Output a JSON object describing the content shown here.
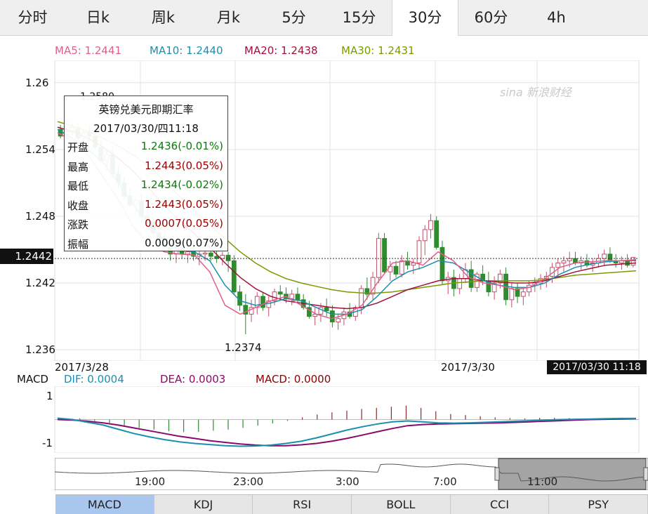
{
  "tabs": [
    "分时",
    "日k",
    "周k",
    "月k",
    "5分",
    "15分",
    "30分",
    "60分",
    "4h"
  ],
  "active_tab": "30分",
  "ma_legend": [
    {
      "label": "MA5: 1.2441",
      "color": "#e0608a"
    },
    {
      "label": "MA10: 1.2440",
      "color": "#1a8fb0"
    },
    {
      "label": "MA20: 1.2438",
      "color": "#a0123c"
    },
    {
      "label": "MA30: 1.2431",
      "color": "#7a9a00"
    }
  ],
  "watermark": "sina 新浪财经",
  "current_price": "1.2442",
  "min_label": "1.2374",
  "max_label": "1.2580",
  "x_labels": [
    "2017/3/28",
    "2017/3/30"
  ],
  "time_badge": "2017/03/30 11:18",
  "tooltip": {
    "title": "英镑兑美元即期汇率",
    "datetime": "2017/03/30/四11:18",
    "rows": [
      {
        "label": "开盘",
        "value": "1.2436(-0.01%)",
        "color": "#0a7a0a"
      },
      {
        "label": "最高",
        "value": "1.2443(0.05%)",
        "color": "#a00000"
      },
      {
        "label": "最低",
        "value": "1.2434(-0.02%)",
        "color": "#0a7a0a"
      },
      {
        "label": "收盘",
        "value": "1.2443(0.05%)",
        "color": "#a00000"
      },
      {
        "label": "涨跌",
        "value": "0.0007(0.05%)",
        "color": "#a00000"
      },
      {
        "label": "振幅",
        "value": "0.0009(0.07%)",
        "color": "#111111"
      }
    ]
  },
  "macd_legend": [
    {
      "label": "MACD",
      "color": "#111111"
    },
    {
      "label": "DIF: 0.0004",
      "color": "#1a8fb0"
    },
    {
      "label": "DEA: 0.0003",
      "color": "#8a0a6a"
    },
    {
      "label": "MACD: 0.0000",
      "color": "#8a0000"
    }
  ],
  "macd_ticks": [
    "1",
    "-1"
  ],
  "navigator_labels": [
    "19:00",
    "23:00",
    "3:00",
    "7:00",
    "11:00"
  ],
  "bottom_tabs": [
    "MACD",
    "KDJ",
    "RSI",
    "BOLL",
    "CCI",
    "PSY"
  ],
  "active_bottom_tab": "MACD",
  "chart_data": {
    "type": "candlestick",
    "title": "英镑兑美元即期汇率",
    "y_ticks": [
      1.26,
      1.254,
      1.248,
      1.242,
      1.236
    ],
    "ylim": [
      1.235,
      1.262
    ],
    "up_color": "#c0506a",
    "down_color": "#2e8b2e",
    "candles": [
      [
        1.2558,
        1.2562,
        1.255,
        1.2552
      ],
      [
        1.2552,
        1.256,
        1.2548,
        1.2556
      ],
      [
        1.2556,
        1.2565,
        1.2552,
        1.256
      ],
      [
        1.256,
        1.2563,
        1.2548,
        1.255
      ],
      [
        1.255,
        1.2558,
        1.2543,
        1.2555
      ],
      [
        1.2555,
        1.2562,
        1.2548,
        1.2552
      ],
      [
        1.2552,
        1.2556,
        1.254,
        1.2542
      ],
      [
        1.2542,
        1.2548,
        1.2528,
        1.253
      ],
      [
        1.253,
        1.254,
        1.252,
        1.2535
      ],
      [
        1.2535,
        1.2542,
        1.2515,
        1.2518
      ],
      [
        1.2518,
        1.2525,
        1.2505,
        1.251
      ],
      [
        1.251,
        1.2515,
        1.2495,
        1.2498
      ],
      [
        1.2498,
        1.2505,
        1.2488,
        1.249
      ],
      [
        1.249,
        1.2498,
        1.2482,
        1.2494
      ],
      [
        1.2494,
        1.25,
        1.2478,
        1.248
      ],
      [
        1.248,
        1.2488,
        1.247,
        1.2475
      ],
      [
        1.2475,
        1.248,
        1.2462,
        1.2465
      ],
      [
        1.2465,
        1.2472,
        1.2455,
        1.246
      ],
      [
        1.246,
        1.2466,
        1.2448,
        1.2452
      ],
      [
        1.2452,
        1.2458,
        1.244,
        1.2446
      ],
      [
        1.2446,
        1.2455,
        1.2438,
        1.245
      ],
      [
        1.245,
        1.2456,
        1.2442,
        1.2446
      ],
      [
        1.2446,
        1.2452,
        1.2438,
        1.2448
      ],
      [
        1.2448,
        1.2455,
        1.244,
        1.2444
      ],
      [
        1.2444,
        1.245,
        1.2436,
        1.2446
      ],
      [
        1.2446,
        1.2452,
        1.244,
        1.2447
      ],
      [
        1.2447,
        1.2452,
        1.244,
        1.2444
      ],
      [
        1.2444,
        1.245,
        1.2438,
        1.2442
      ],
      [
        1.2442,
        1.2448,
        1.2436,
        1.2445
      ],
      [
        1.2445,
        1.2448,
        1.243,
        1.244
      ],
      [
        1.244,
        1.2445,
        1.241,
        1.2412
      ],
      [
        1.2412,
        1.2418,
        1.2395,
        1.24
      ],
      [
        1.24,
        1.241,
        1.2374,
        1.2392
      ],
      [
        1.2392,
        1.2405,
        1.2385,
        1.2398
      ],
      [
        1.2398,
        1.2412,
        1.2392,
        1.2408
      ],
      [
        1.2408,
        1.2412,
        1.2395,
        1.2398
      ],
      [
        1.2398,
        1.2408,
        1.239,
        1.2404
      ],
      [
        1.2404,
        1.2415,
        1.24,
        1.2412
      ],
      [
        1.2412,
        1.2418,
        1.2405,
        1.241
      ],
      [
        1.241,
        1.2416,
        1.2402,
        1.2406
      ],
      [
        1.2406,
        1.2414,
        1.24,
        1.241
      ],
      [
        1.241,
        1.2416,
        1.2402,
        1.2405
      ],
      [
        1.2405,
        1.241,
        1.2396,
        1.2398
      ],
      [
        1.2398,
        1.2404,
        1.2388,
        1.239
      ],
      [
        1.239,
        1.2398,
        1.2382,
        1.2392
      ],
      [
        1.2392,
        1.2402,
        1.2385,
        1.2398
      ],
      [
        1.2398,
        1.2406,
        1.239,
        1.2395
      ],
      [
        1.2395,
        1.24,
        1.238,
        1.2385
      ],
      [
        1.2385,
        1.2392,
        1.2378,
        1.2388
      ],
      [
        1.2388,
        1.2398,
        1.2382,
        1.2394
      ],
      [
        1.2394,
        1.2402,
        1.2388,
        1.239
      ],
      [
        1.239,
        1.24,
        1.2386,
        1.2398
      ],
      [
        1.2398,
        1.2418,
        1.2392,
        1.2415
      ],
      [
        1.2415,
        1.2425,
        1.2405,
        1.241
      ],
      [
        1.241,
        1.243,
        1.2405,
        1.2425
      ],
      [
        1.2425,
        1.2465,
        1.242,
        1.246
      ],
      [
        1.246,
        1.2465,
        1.2428,
        1.243
      ],
      [
        1.243,
        1.244,
        1.2422,
        1.2435
      ],
      [
        1.2435,
        1.244,
        1.2425,
        1.2428
      ],
      [
        1.2428,
        1.2445,
        1.2425,
        1.244
      ],
      [
        1.244,
        1.2448,
        1.2432,
        1.2436
      ],
      [
        1.2436,
        1.2442,
        1.2428,
        1.2438
      ],
      [
        1.2438,
        1.2462,
        1.2432,
        1.2458
      ],
      [
        1.2458,
        1.2472,
        1.2445,
        1.2468
      ],
      [
        1.2468,
        1.2482,
        1.246,
        1.2476
      ],
      [
        1.2476,
        1.248,
        1.245,
        1.2452
      ],
      [
        1.2452,
        1.2458,
        1.2418,
        1.2422
      ],
      [
        1.2422,
        1.243,
        1.241,
        1.2425
      ],
      [
        1.2425,
        1.2432,
        1.2408,
        1.2415
      ],
      [
        1.2415,
        1.2428,
        1.241,
        1.2424
      ],
      [
        1.2424,
        1.2438,
        1.242,
        1.2432
      ],
      [
        1.2432,
        1.244,
        1.2412,
        1.2416
      ],
      [
        1.2416,
        1.243,
        1.2412,
        1.2428
      ],
      [
        1.2428,
        1.2436,
        1.2418,
        1.2422
      ],
      [
        1.2422,
        1.243,
        1.2408,
        1.2412
      ],
      [
        1.2412,
        1.2426,
        1.2405,
        1.242
      ],
      [
        1.242,
        1.2432,
        1.2415,
        1.2428
      ],
      [
        1.2428,
        1.2434,
        1.24,
        1.2405
      ],
      [
        1.2405,
        1.242,
        1.2398,
        1.2415
      ],
      [
        1.2415,
        1.242,
        1.2402,
        1.2408
      ],
      [
        1.2408,
        1.2416,
        1.24,
        1.2412
      ],
      [
        1.2412,
        1.2422,
        1.2408,
        1.2418
      ],
      [
        1.2418,
        1.2425,
        1.2412,
        1.242
      ],
      [
        1.242,
        1.2428,
        1.2414,
        1.2424
      ],
      [
        1.2424,
        1.243,
        1.2416,
        1.2426
      ],
      [
        1.2426,
        1.2438,
        1.242,
        1.2434
      ],
      [
        1.2434,
        1.2442,
        1.2426,
        1.2438
      ],
      [
        1.2438,
        1.2444,
        1.243,
        1.244
      ],
      [
        1.244,
        1.2448,
        1.2434,
        1.2442
      ],
      [
        1.2442,
        1.2448,
        1.2436,
        1.2438
      ],
      [
        1.2438,
        1.2444,
        1.2432,
        1.244
      ],
      [
        1.244,
        1.2446,
        1.2434,
        1.2436
      ],
      [
        1.2436,
        1.2442,
        1.243,
        1.2438
      ],
      [
        1.2438,
        1.2446,
        1.2434,
        1.2442
      ],
      [
        1.2442,
        1.245,
        1.2436,
        1.2446
      ],
      [
        1.2446,
        1.2452,
        1.2438,
        1.244
      ],
      [
        1.244,
        1.2446,
        1.2434,
        1.2438
      ],
      [
        1.2438,
        1.2444,
        1.2432,
        1.244
      ],
      [
        1.244,
        1.2446,
        1.2434,
        1.2436
      ],
      [
        1.2436,
        1.2443,
        1.2434,
        1.2443
      ]
    ],
    "ma5": [
      1.2555,
      1.2548,
      1.2535,
      1.2515,
      1.2495,
      1.247,
      1.2455,
      1.2448,
      1.2446,
      1.2445,
      1.243,
      1.24,
      1.2392,
      1.2398,
      1.2404,
      1.2408,
      1.24,
      1.2392,
      1.2388,
      1.2392,
      1.24,
      1.242,
      1.2438,
      1.244,
      1.2436,
      1.2448,
      1.244,
      1.2425,
      1.242,
      1.2418,
      1.2414,
      1.2416,
      1.2424,
      1.2434,
      1.2438,
      1.2439,
      1.244,
      1.244,
      1.2441
    ],
    "ma10": [
      1.2558,
      1.255,
      1.254,
      1.2528,
      1.251,
      1.249,
      1.2472,
      1.2458,
      1.245,
      1.2448,
      1.244,
      1.2418,
      1.2404,
      1.24,
      1.2402,
      1.2406,
      1.2404,
      1.2398,
      1.2392,
      1.2392,
      1.2396,
      1.2408,
      1.2422,
      1.243,
      1.2434,
      1.244,
      1.2438,
      1.243,
      1.2422,
      1.2418,
      1.2416,
      1.2416,
      1.242,
      1.2428,
      1.2434,
      1.2437,
      1.2439,
      1.244,
      1.244
    ],
    "ma20": [
      1.256,
      1.2556,
      1.255,
      1.2542,
      1.2532,
      1.252,
      1.2505,
      1.249,
      1.2476,
      1.2464,
      1.2452,
      1.2438,
      1.2425,
      1.2415,
      1.2408,
      1.2404,
      1.2402,
      1.24,
      1.2398,
      1.2397,
      1.2398,
      1.2402,
      1.2408,
      1.2414,
      1.2418,
      1.2422,
      1.2424,
      1.2424,
      1.2422,
      1.2421,
      1.242,
      1.242,
      1.2422,
      1.2426,
      1.243,
      1.2433,
      1.2436,
      1.2437,
      1.2438
    ],
    "ma30": [
      1.2565,
      1.2561,
      1.2556,
      1.255,
      1.2543,
      1.2535,
      1.2525,
      1.2512,
      1.2498,
      1.2485,
      1.2472,
      1.246,
      1.2448,
      1.2438,
      1.243,
      1.2424,
      1.242,
      1.2417,
      1.2414,
      1.2412,
      1.2411,
      1.2411,
      1.2412,
      1.2414,
      1.2416,
      1.2418,
      1.242,
      1.2421,
      1.2422,
      1.2422,
      1.2422,
      1.2422,
      1.2423,
      1.2425,
      1.2427,
      1.2428,
      1.2429,
      1.243,
      1.2431
    ],
    "macd": {
      "ylim": [
        -1.2,
        1.2
      ],
      "dif": [
        0.05,
        0.0,
        -0.1,
        -0.2,
        -0.35,
        -0.5,
        -0.62,
        -0.72,
        -0.8,
        -0.86,
        -0.9,
        -0.94,
        -0.96,
        -0.95,
        -0.92,
        -0.86,
        -0.78,
        -0.66,
        -0.52,
        -0.38,
        -0.26,
        -0.16,
        -0.08,
        -0.05,
        -0.08,
        -0.12,
        -0.13,
        -0.12,
        -0.1,
        -0.08,
        -0.06,
        -0.04,
        -0.02,
        0.0,
        0.01,
        0.02,
        0.03,
        0.04,
        0.04
      ],
      "dea": [
        0.0,
        -0.02,
        -0.06,
        -0.12,
        -0.2,
        -0.3,
        -0.4,
        -0.5,
        -0.6,
        -0.68,
        -0.76,
        -0.82,
        -0.88,
        -0.92,
        -0.94,
        -0.94,
        -0.91,
        -0.86,
        -0.78,
        -0.68,
        -0.56,
        -0.44,
        -0.32,
        -0.22,
        -0.18,
        -0.16,
        -0.15,
        -0.14,
        -0.13,
        -0.12,
        -0.1,
        -0.08,
        -0.06,
        -0.04,
        -0.02,
        0.0,
        0.01,
        0.02,
        0.03
      ],
      "hist": [
        0.04,
        0.04,
        -0.05,
        -0.12,
        -0.22,
        -0.3,
        -0.36,
        -0.42,
        -0.45,
        -0.44,
        -0.4,
        -0.36,
        -0.3,
        -0.22,
        -0.14,
        -0.05,
        0.08,
        0.18,
        0.26,
        0.32,
        0.38,
        0.42,
        0.46,
        0.5,
        0.42,
        0.3,
        0.2,
        0.16,
        0.12,
        0.08,
        0.05,
        0.04,
        0.06,
        0.06,
        0.05,
        0.04,
        0.03,
        0.02,
        0.01
      ]
    }
  }
}
